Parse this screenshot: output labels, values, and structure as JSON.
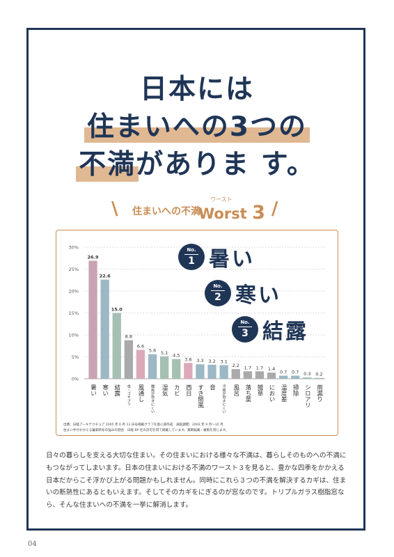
{
  "title": {
    "line1": "日本には",
    "line2_highlight": "住まいへの3つの",
    "line3_highlight": "不満",
    "line3_rest": "がありま す。"
  },
  "subtitle": {
    "text": "住まいへの不満",
    "ruby": "ワースト",
    "worst": "Worst",
    "num": "3",
    "slash_left": "\\",
    "slash_right": "/"
  },
  "ranks": [
    {
      "no": "No.",
      "num": "1",
      "word": "暑い"
    },
    {
      "no": "No.",
      "num": "2",
      "word": "寒い"
    },
    {
      "no": "No.",
      "num": "3",
      "word": "結露"
    }
  ],
  "chart_data": {
    "type": "bar",
    "categories": [
      "暑い",
      "寒い",
      "結露",
      "虫・ゴキブリ",
      "風通し",
      "履房が効きにくい",
      "湿気",
      "カビ",
      "西日",
      "すき間風",
      "音",
      "冷房が効きにくい",
      "風呂",
      "落ち葉",
      "雑草",
      "におい",
      "温度差",
      "掃除",
      "シロアリ",
      "雨漏り"
    ],
    "values": [
      26.9,
      22.6,
      15.0,
      8.8,
      6.6,
      5.6,
      5.1,
      4.5,
      3.6,
      3.3,
      3.2,
      3.1,
      2.2,
      1.7,
      1.7,
      1.4,
      0.7,
      0.7,
      0.3,
      0.2
    ],
    "value_labels": [
      "26.9",
      "22.6",
      "15.0",
      "8.8",
      "6.6",
      "5.6",
      "5.1",
      "4.5",
      "3.6",
      "3.3",
      "3.2",
      "3.1",
      "2.2",
      "1.7",
      "1.7",
      "1.4",
      "0.7",
      "0.7",
      "0.3",
      "0.2"
    ],
    "yticks": [
      "0%",
      "5%",
      "10%",
      "15%",
      "20%",
      "25%",
      "30%"
    ],
    "ylim": [
      0,
      30
    ],
    "grid": true,
    "colors": [
      "#c9a3b3",
      "#9cb8c6",
      "#a5c0b2",
      "#aaaaad",
      "#dba9b9",
      "#9cb8c6",
      "#a5c0b2",
      "#a5c0b2",
      "#dba9b9",
      "#9cb8c6",
      "#9cb8c6",
      "#9cb8c6",
      "#aaaaad",
      "#aaaaad",
      "#aaaaad",
      "#aaaaad",
      "#9cb8c6",
      "#9cb8c6",
      "#a5c0b2",
      "#9cb8c6"
    ]
  },
  "chart_notes": {
    "line1": "出典：日経アーキテクチュア 2005 年 6 月 13 日号掲載グラフを基に再作成　調査期間：2003 年 9 月〜10 月",
    "line2": "住まい手がかかえる暮家断冬の悩みの割合　日経 BP 社の許可を得て掲載しています。無断転載・複製を禁じます。"
  },
  "body": "日々の暮らしを支える大切な住まい。その住まいにおける様々な不満は、暮らしそのものへの不満にもつながってしまいます。日本の住まいにおける不満のワースト３を見ると、豊かな四季をかかえる日本だからこそ浮かび上がる問題かもしれません。同時にこれら３つの不満を解決するカギは、住まいの断熱性にあるともいえます。そしてそのカギをにぎるのが窓なのです。トリプルガラス樹脂窓なら、そんな住まいへの不満を一挙に解消します。",
  "page_number": "04"
}
